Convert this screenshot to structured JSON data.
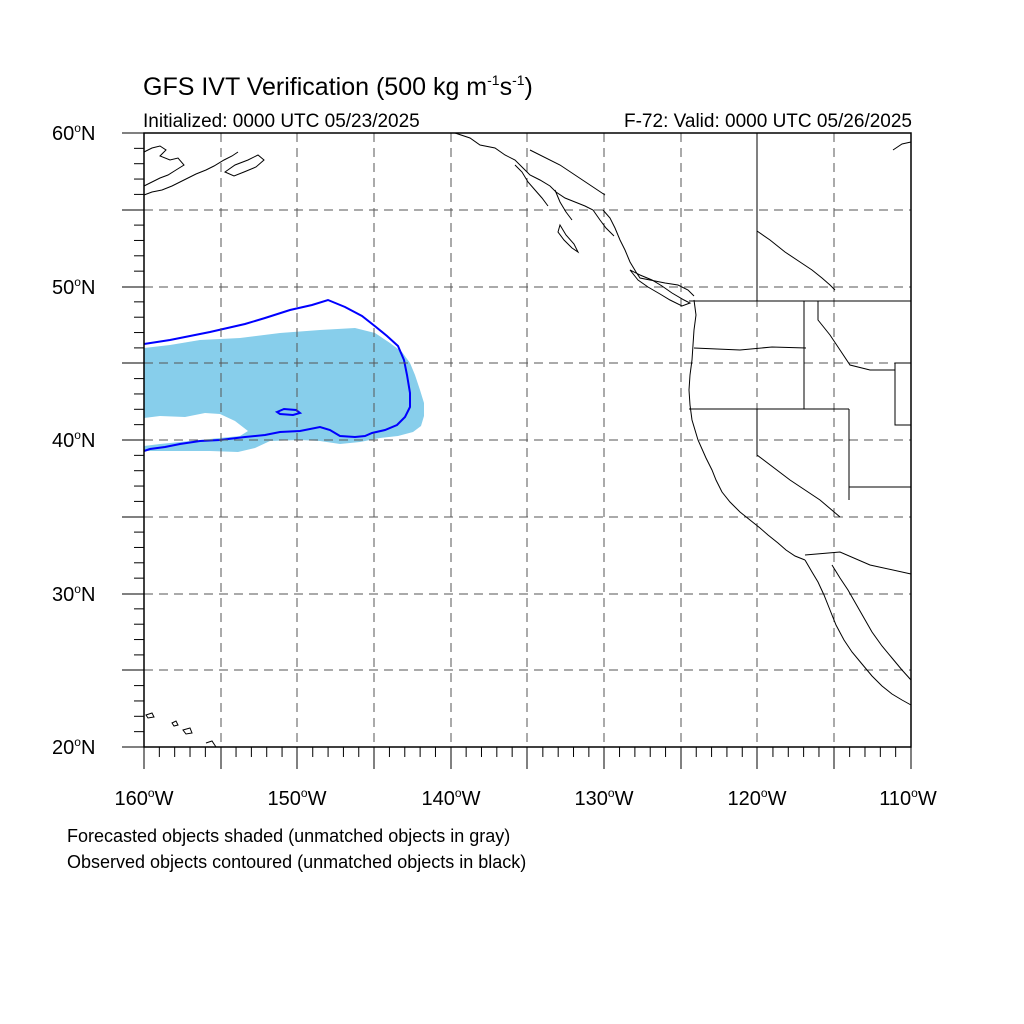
{
  "title": {
    "main": "GFS IVT Verification (500 kg m",
    "exp1": "-1",
    "mid": "s",
    "exp2": "-1",
    "end": ")"
  },
  "subtitle_left": "Initialized: 0000 UTC 05/23/2025",
  "subtitle_right": "F-72: Valid: 0000 UTC 05/26/2025",
  "axes": {
    "lat_labels": [
      {
        "num": "60",
        "deg": "o",
        "hemi": "N"
      },
      {
        "num": "50",
        "deg": "o",
        "hemi": "N"
      },
      {
        "num": "40",
        "deg": "o",
        "hemi": "N"
      },
      {
        "num": "30",
        "deg": "o",
        "hemi": "N"
      },
      {
        "num": "20",
        "deg": "o",
        "hemi": "N"
      }
    ],
    "lon_labels": [
      {
        "num": "160",
        "deg": "o",
        "hemi": "W"
      },
      {
        "num": "150",
        "deg": "o",
        "hemi": "W"
      },
      {
        "num": "140",
        "deg": "o",
        "hemi": "W"
      },
      {
        "num": "130",
        "deg": "o",
        "hemi": "W"
      },
      {
        "num": "120",
        "deg": "o",
        "hemi": "W"
      },
      {
        "num": "110",
        "deg": "o",
        "hemi": "W"
      }
    ]
  },
  "notes": {
    "forecast": "Forecasted objects shaded (unmatched objects in gray)",
    "observed": "Observed objects contoured (unmatched objects in black)"
  },
  "colors": {
    "forecast_fill": "#87ceeb",
    "observed_contour": "#0000ff",
    "coastline": "#000000",
    "grid": "#555555"
  }
}
